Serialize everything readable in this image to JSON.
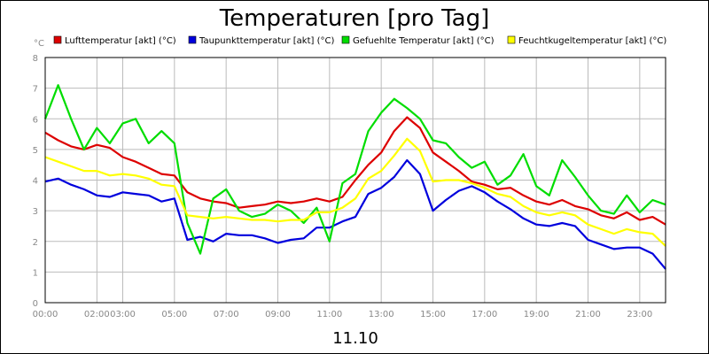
{
  "chart_data": {
    "type": "line",
    "title": "Temperaturen [pro Tag]",
    "ylabel": "°C",
    "xlabel": "11.10",
    "xlim": [
      0,
      24
    ],
    "ylim": [
      0,
      8
    ],
    "yticks": [
      0,
      1,
      2,
      3,
      4,
      5,
      6,
      7,
      8
    ],
    "xticks": [
      {
        "label": "00:00",
        "value": 0
      },
      {
        "label": "02:00",
        "value": 2
      },
      {
        "label": "03:00",
        "value": 3
      },
      {
        "label": "05:00",
        "value": 5
      },
      {
        "label": "07:00",
        "value": 7
      },
      {
        "label": "09:00",
        "value": 9
      },
      {
        "label": "11:00",
        "value": 11
      },
      {
        "label": "13:00",
        "value": 13
      },
      {
        "label": "15:00",
        "value": 15
      },
      {
        "label": "17:00",
        "value": 17
      },
      {
        "label": "19:00",
        "value": 19
      },
      {
        "label": "21:00",
        "value": 21
      },
      {
        "label": "23:00",
        "value": 23
      }
    ],
    "grid": true,
    "x": [
      0,
      0.5,
      1,
      1.5,
      2,
      2.5,
      3,
      3.5,
      4,
      4.5,
      5,
      5.5,
      6,
      6.5,
      7,
      7.5,
      8,
      8.5,
      9,
      9.5,
      10,
      10.5,
      11,
      11.5,
      12,
      12.5,
      13,
      13.5,
      14,
      14.5,
      15,
      15.5,
      16,
      16.5,
      17,
      17.5,
      18,
      18.5,
      19,
      19.5,
      20,
      20.5,
      21,
      21.5,
      22,
      22.5,
      23,
      23.5,
      24
    ],
    "series": [
      {
        "name": "Lufttemperatur [akt] (°C)",
        "color": "#dd0000",
        "values": [
          5.55,
          5.3,
          5.1,
          5.0,
          5.15,
          5.05,
          4.75,
          4.6,
          4.4,
          4.2,
          4.15,
          3.6,
          3.4,
          3.3,
          3.25,
          3.1,
          3.15,
          3.2,
          3.3,
          3.25,
          3.3,
          3.4,
          3.3,
          3.45,
          4.0,
          4.5,
          4.9,
          5.6,
          6.05,
          5.7,
          4.9,
          4.6,
          4.3,
          3.95,
          3.85,
          3.7,
          3.75,
          3.5,
          3.3,
          3.2,
          3.35,
          3.15,
          3.05,
          2.85,
          2.75,
          2.95,
          2.7,
          2.8,
          2.55
        ]
      },
      {
        "name": "Taupunkttemperatur [akt] (°C)",
        "color": "#0000dd",
        "values": [
          3.95,
          4.05,
          3.85,
          3.7,
          3.5,
          3.45,
          3.6,
          3.55,
          3.5,
          3.3,
          3.4,
          2.05,
          2.15,
          2.0,
          2.25,
          2.2,
          2.2,
          2.1,
          1.95,
          2.05,
          2.1,
          2.45,
          2.45,
          2.65,
          2.8,
          3.55,
          3.75,
          4.1,
          4.65,
          4.2,
          3.0,
          3.35,
          3.65,
          3.8,
          3.6,
          3.3,
          3.05,
          2.75,
          2.55,
          2.5,
          2.6,
          2.5,
          2.05,
          1.9,
          1.75,
          1.8,
          1.8,
          1.6,
          1.1
        ]
      },
      {
        "name": "Gefuehlte Temperatur [akt] (°C)",
        "color": "#00dd00",
        "values": [
          6.0,
          7.1,
          6.0,
          5.0,
          5.7,
          5.2,
          5.85,
          6.0,
          5.2,
          5.6,
          5.2,
          2.6,
          1.6,
          3.4,
          3.7,
          3.0,
          2.8,
          2.9,
          3.2,
          3.0,
          2.6,
          3.1,
          2.0,
          3.9,
          4.2,
          5.6,
          6.2,
          6.65,
          6.35,
          6.0,
          5.3,
          5.2,
          4.75,
          4.4,
          4.6,
          3.85,
          4.15,
          4.85,
          3.8,
          3.5,
          4.65,
          4.1,
          3.5,
          3.0,
          2.9,
          3.5,
          2.95,
          3.35,
          3.2
        ]
      },
      {
        "name": "Feuchtkugeltemperatur [akt] (°C)",
        "color": "#ffff00",
        "values": [
          4.75,
          4.6,
          4.45,
          4.3,
          4.3,
          4.15,
          4.2,
          4.15,
          4.05,
          3.85,
          3.8,
          2.85,
          2.8,
          2.75,
          2.8,
          2.75,
          2.7,
          2.7,
          2.65,
          2.7,
          2.7,
          2.95,
          2.95,
          3.1,
          3.4,
          4.05,
          4.3,
          4.8,
          5.35,
          4.95,
          3.95,
          4.0,
          4.0,
          3.9,
          3.75,
          3.55,
          3.45,
          3.15,
          2.95,
          2.85,
          2.95,
          2.85,
          2.55,
          2.4,
          2.25,
          2.4,
          2.3,
          2.25,
          1.85
        ]
      }
    ]
  }
}
